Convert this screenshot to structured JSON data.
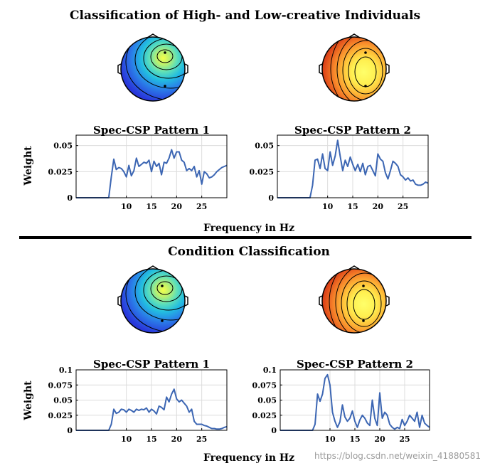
{
  "sections": [
    {
      "heading": "Classification of High- and Low-creative Individuals",
      "xlabel": "Frequency in Hz",
      "ylabel": "Weight",
      "topomaps": [
        {
          "colormap": "cool",
          "name": "topomap-blue"
        },
        {
          "colormap": "warm",
          "name": "topomap-red"
        }
      ]
    },
    {
      "heading": "Condition Classification",
      "xlabel": "Frequency in Hz",
      "ylabel": "Weight",
      "topomaps": [
        {
          "colormap": "cool",
          "name": "topomap-blue"
        },
        {
          "colormap": "warm",
          "name": "topomap-red"
        }
      ]
    }
  ],
  "watermark": "https://blog.csdn.net/weixin_41880581",
  "colors": {
    "line": "#3c66b3",
    "cool_edge": "#1a1ad0",
    "cool_center": "#f2ff4a",
    "warm_edge": "#a30000",
    "warm_center": "#ffff66"
  },
  "chart_data": [
    {
      "type": "line",
      "title": "Spec-CSP Pattern 1",
      "xlabel": "",
      "ylabel": "Weight",
      "xlim": [
        0,
        30
      ],
      "ylim": [
        0,
        0.06
      ],
      "xticks": [
        10,
        15,
        20,
        25
      ],
      "yticks": [
        0,
        0.025,
        0.05
      ],
      "ytick_labels": [
        "0",
        "0.025",
        "0.05"
      ],
      "x": [
        0,
        6,
        6.5,
        7,
        7.5,
        8,
        8.5,
        9,
        9.5,
        10,
        10.5,
        11,
        11.5,
        12,
        12.5,
        13,
        13.5,
        14,
        14.5,
        15,
        15.5,
        16,
        16.5,
        17,
        17.5,
        18,
        18.5,
        19,
        19.5,
        20,
        20.5,
        21,
        21.5,
        22,
        22.5,
        23,
        23.5,
        24,
        24.5,
        25,
        25.5,
        26,
        26.5,
        27,
        27.5,
        28,
        28.5,
        29,
        29.5,
        30
      ],
      "y": [
        0,
        0,
        0,
        0.02,
        0.037,
        0.027,
        0.029,
        0.028,
        0.025,
        0.02,
        0.031,
        0.021,
        0.026,
        0.038,
        0.03,
        0.032,
        0.034,
        0.033,
        0.036,
        0.025,
        0.035,
        0.03,
        0.033,
        0.022,
        0.034,
        0.033,
        0.038,
        0.046,
        0.038,
        0.044,
        0.044,
        0.036,
        0.034,
        0.026,
        0.028,
        0.026,
        0.03,
        0.02,
        0.026,
        0.013,
        0.025,
        0.023,
        0.019,
        0.02,
        0.022,
        0.025,
        0.027,
        0.029,
        0.03,
        0.031
      ]
    },
    {
      "type": "line",
      "title": "Spec-CSP Pattern 2",
      "xlabel": "",
      "ylabel": "",
      "xlim": [
        0,
        30
      ],
      "ylim": [
        0,
        0.06
      ],
      "xticks": [
        10,
        15,
        20,
        25
      ],
      "yticks": [
        0,
        0.025,
        0.05
      ],
      "ytick_labels": [
        "0",
        "0.025",
        "0.05"
      ],
      "x": [
        0,
        6,
        6.5,
        7,
        7.5,
        8,
        8.5,
        9,
        9.5,
        10,
        10.5,
        11,
        11.5,
        12,
        12.5,
        13,
        13.5,
        14,
        14.5,
        15,
        15.5,
        16,
        16.5,
        17,
        17.5,
        18,
        18.5,
        19,
        19.5,
        20,
        20.5,
        21,
        21.5,
        22,
        22.5,
        23,
        23.5,
        24,
        24.5,
        25,
        25.5,
        26,
        26.5,
        27,
        27.5,
        28,
        28.5,
        29,
        29.5,
        30
      ],
      "y": [
        0,
        0,
        0,
        0.012,
        0.036,
        0.037,
        0.028,
        0.042,
        0.028,
        0.026,
        0.044,
        0.031,
        0.04,
        0.055,
        0.04,
        0.026,
        0.036,
        0.03,
        0.039,
        0.032,
        0.026,
        0.032,
        0.025,
        0.033,
        0.022,
        0.03,
        0.031,
        0.026,
        0.021,
        0.042,
        0.037,
        0.035,
        0.024,
        0.018,
        0.026,
        0.035,
        0.033,
        0.03,
        0.022,
        0.02,
        0.017,
        0.019,
        0.016,
        0.017,
        0.013,
        0.012,
        0.012,
        0.013,
        0.015,
        0.014
      ]
    },
    {
      "type": "line",
      "title": "Spec-CSP Pattern 1",
      "xlabel": "Frequency in Hz",
      "ylabel": "Weight",
      "xlim": [
        0,
        30
      ],
      "ylim": [
        0,
        0.1
      ],
      "xticks": [
        10,
        15,
        20,
        25
      ],
      "yticks": [
        0,
        0.025,
        0.05,
        0.075,
        0.1
      ],
      "ytick_labels": [
        "0",
        "0.025",
        "0.05",
        "0.075",
        "0.1"
      ],
      "x": [
        0,
        6,
        6.5,
        7,
        7.5,
        8,
        8.5,
        9,
        9.5,
        10,
        10.5,
        11,
        11.5,
        12,
        12.5,
        13,
        13.5,
        14,
        14.5,
        15,
        15.5,
        16,
        16.5,
        17,
        17.5,
        18,
        18.5,
        19,
        19.5,
        20,
        20.5,
        21,
        21.5,
        22,
        22.5,
        23,
        23.5,
        24,
        24.5,
        25,
        25.5,
        26,
        26.5,
        27,
        27.5,
        28,
        28.5,
        29,
        29.5,
        30
      ],
      "y": [
        0,
        0,
        0,
        0.01,
        0.035,
        0.028,
        0.03,
        0.035,
        0.034,
        0.03,
        0.035,
        0.033,
        0.03,
        0.035,
        0.033,
        0.035,
        0.034,
        0.037,
        0.03,
        0.035,
        0.032,
        0.027,
        0.04,
        0.038,
        0.034,
        0.055,
        0.047,
        0.06,
        0.068,
        0.052,
        0.047,
        0.05,
        0.045,
        0.04,
        0.03,
        0.035,
        0.015,
        0.01,
        0.01,
        0.01,
        0.008,
        0.007,
        0.005,
        0.003,
        0.003,
        0.002,
        0.002,
        0.003,
        0.005,
        0.006
      ]
    },
    {
      "type": "line",
      "title": "Spec-CSP Pattern 2",
      "xlabel": "Frequency in Hz",
      "ylabel": "",
      "xlim": [
        0,
        30
      ],
      "ylim": [
        0,
        0.1
      ],
      "xticks": [
        10,
        15,
        20,
        25
      ],
      "yticks": [
        0,
        0.025,
        0.05,
        0.075,
        0.1
      ],
      "ytick_labels": [
        "0",
        "0.025",
        "0.05",
        "0.075",
        "0.1"
      ],
      "x": [
        0,
        6,
        6.5,
        7,
        7.5,
        8,
        8.5,
        9,
        9.5,
        10,
        10.5,
        11,
        11.5,
        12,
        12.5,
        13,
        13.5,
        14,
        14.5,
        15,
        15.5,
        16,
        16.5,
        17,
        17.5,
        18,
        18.5,
        19,
        19.5,
        20,
        20.5,
        21,
        21.5,
        22,
        22.5,
        23,
        23.5,
        24,
        24.5,
        25,
        25.5,
        26,
        26.5,
        27,
        27.5,
        28,
        28.5,
        29,
        29.5,
        30
      ],
      "y": [
        0,
        0,
        0,
        0.01,
        0.06,
        0.048,
        0.06,
        0.086,
        0.092,
        0.075,
        0.03,
        0.015,
        0.005,
        0.014,
        0.042,
        0.022,
        0.015,
        0.02,
        0.032,
        0.015,
        0.005,
        0.017,
        0.025,
        0.02,
        0.012,
        0.008,
        0.05,
        0.02,
        0.008,
        0.062,
        0.02,
        0.03,
        0.025,
        0.01,
        0.005,
        0.002,
        0.005,
        0.003,
        0.018,
        0.008,
        0.015,
        0.025,
        0.02,
        0.015,
        0.03,
        0.005,
        0.025,
        0.012,
        0.008,
        0.005
      ]
    }
  ]
}
